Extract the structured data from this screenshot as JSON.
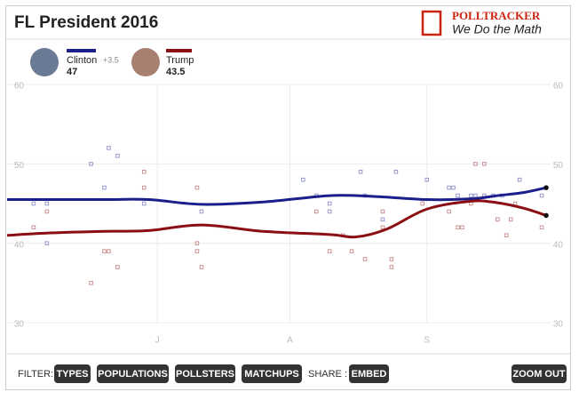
{
  "header": {
    "logo": "POLLTRACKER",
    "tagline": "We Do the Math"
  },
  "toolbar": {
    "filter_label": "FILTER:",
    "filters": [
      "TYPES",
      "POPULATIONS",
      "POLLSTERS",
      "MATCHUPS"
    ],
    "share_label": "SHARE :",
    "share": "EMBED",
    "zoom": "ZOOM OUT"
  },
  "chart_data": {
    "type": "line",
    "title": "FL President 2016",
    "xlim": [
      -34,
      89
    ],
    "xticks": [
      {
        "value": 0,
        "label": "J"
      },
      {
        "value": 30,
        "label": "A"
      },
      {
        "value": 61,
        "label": "S"
      }
    ],
    "ylim": [
      30,
      60
    ],
    "yticks": [
      30,
      40,
      50,
      60
    ],
    "grid": true,
    "series": [
      {
        "name": "Clinton",
        "color": "#1a1f8c",
        "lead": "+3.5",
        "x": [
          -34,
          -24,
          -12,
          -2,
          10,
          24,
          39,
          49,
          61,
          71,
          77,
          83,
          88
        ],
        "values": [
          45.5,
          45.5,
          45.5,
          45.5,
          44.9,
          45.2,
          46.0,
          45.9,
          45.5,
          45.6,
          46.0,
          46.4,
          47
        ],
        "poll_x": [
          -28,
          -25,
          -25,
          -15,
          -12,
          -11,
          -9,
          -3,
          10,
          33,
          36,
          39,
          39,
          46,
          47,
          51,
          54,
          61,
          66,
          67,
          68,
          71,
          72,
          74,
          76,
          78,
          82,
          87
        ],
        "poll_values": [
          45,
          45,
          40,
          50,
          47,
          52,
          51,
          45,
          44,
          48,
          46,
          44,
          45,
          49,
          46,
          43,
          49,
          48,
          47,
          47,
          46,
          46,
          46,
          46,
          46,
          46,
          48,
          46
        ]
      },
      {
        "name": "Trump",
        "color": "#8b0f12",
        "x": [
          -34,
          -24,
          -12,
          -2,
          10,
          24,
          39,
          45,
          52,
          61,
          71,
          77,
          83,
          88
        ],
        "values": [
          41.0,
          41.3,
          41.5,
          41.6,
          42.3,
          41.5,
          41.1,
          40.8,
          41.8,
          44.3,
          45.3,
          45.1,
          44.4,
          43.5
        ],
        "poll_x": [
          -28,
          -25,
          -12,
          -11,
          -9,
          -15,
          -3,
          -3,
          9,
          9,
          9,
          10,
          36,
          39,
          42,
          44,
          47,
          51,
          51,
          53,
          53,
          60,
          66,
          68,
          69,
          71,
          72,
          74,
          77,
          79,
          80,
          81,
          87
        ],
        "poll_values": [
          42,
          44,
          39,
          39,
          37,
          35,
          49,
          47,
          47,
          40,
          39,
          37,
          44,
          39,
          41,
          39,
          38,
          44,
          42,
          38,
          37,
          45,
          44,
          42,
          42,
          45,
          50,
          50,
          43,
          41,
          43,
          45,
          42
        ]
      }
    ]
  }
}
